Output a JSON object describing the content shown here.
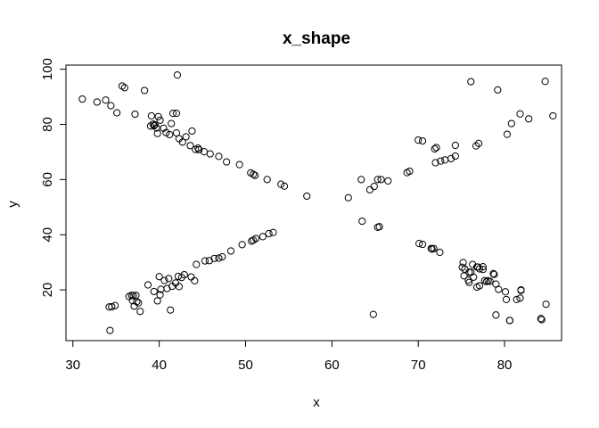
{
  "chart_data": {
    "type": "scatter",
    "title": "x_shape",
    "xlabel": "x",
    "ylabel": "y",
    "xlim": [
      29.2,
      86.6
    ],
    "ylim": [
      1.6,
      101.5
    ],
    "xticks": [
      30,
      40,
      50,
      60,
      70,
      80
    ],
    "yticks": [
      20,
      40,
      60,
      80,
      100
    ],
    "grid": false,
    "box": true,
    "x": [
      31.1,
      32.8,
      33.8,
      34.4,
      35.1,
      35.7,
      36.0,
      37.2,
      38.3,
      39.1,
      39.5,
      39.0,
      39.4,
      39.7,
      39.3,
      39.8,
      40.1,
      39.9,
      40.5,
      40.8,
      41.2,
      41.4,
      41.6,
      42.0,
      42.3,
      42.1,
      42.7,
      43.1,
      43.6,
      43.8,
      44.2,
      44.6,
      44.5,
      45.2,
      45.9,
      46.9,
      47.8,
      49.3,
      50.6,
      50.9,
      51.1,
      52.5,
      54.1,
      54.5,
      57.1,
      61.9,
      63.5,
      64.4,
      64.9,
      65.3,
      65.5,
      66.5,
      68.7,
      69.0,
      70.1,
      70.5,
      71.5,
      71.8,
      72.0,
      72.5,
      73.1,
      73.8,
      74.3,
      74.3,
      75.2,
      75.3,
      75.8,
      76.1,
      76.3,
      76.1,
      76.7,
      76.8,
      76.9,
      77.0,
      77.1,
      77.5,
      77.7,
      78.1,
      78.7,
      79.0,
      79.2,
      80.1,
      80.3,
      80.6,
      80.8,
      81.4,
      81.8,
      81.9,
      82.8,
      84.2,
      84.8,
      85.6,
      34.2,
      34.3,
      34.5,
      34.9,
      36.5,
      36.8,
      36.9,
      37.0,
      37.1,
      37.3,
      37.4,
      37.6,
      37.8,
      38.7,
      39.4,
      39.8,
      40.0,
      40.1,
      40.2,
      40.6,
      40.9,
      41.1,
      41.3,
      41.5,
      41.9,
      42.2,
      42.3,
      42.6,
      42.9,
      43.7,
      44.1,
      44.3,
      45.3,
      45.8,
      46.4,
      46.9,
      47.3,
      48.3,
      49.6,
      50.7,
      50.9,
      51.2,
      52.0,
      52.7,
      53.2,
      63.4,
      64.8,
      65.3,
      65.7,
      70.0,
      70.5,
      71.6,
      71.9,
      72.1,
      72.6,
      75.1,
      75.4,
      75.9,
      75.9,
      76.4,
      76.8,
      77.1,
      77.5,
      77.9,
      78.3,
      78.8,
      79.0,
      79.3,
      80.2,
      80.6,
      81.8,
      81.9,
      84.3,
      84.7,
      42.0
    ],
    "y": [
      89.2,
      88.1,
      88.8,
      86.8,
      84.2,
      93.9,
      93.3,
      83.7,
      92.3,
      83.1,
      79.8,
      79.4,
      79.5,
      78.7,
      80.1,
      76.7,
      81.5,
      82.8,
      78.6,
      77.0,
      76.3,
      80.3,
      84.0,
      76.9,
      74.8,
      97.9,
      73.6,
      75.5,
      72.3,
      77.6,
      70.9,
      70.8,
      71.4,
      70.1,
      69.3,
      68.4,
      66.4,
      65.4,
      62.4,
      61.9,
      61.5,
      60.0,
      58.3,
      57.6,
      54.0,
      53.4,
      44.9,
      56.3,
      57.5,
      42.7,
      42.9,
      59.5,
      62.5,
      63.0,
      36.8,
      36.5,
      35.0,
      35.0,
      66.1,
      33.6,
      67.1,
      67.6,
      68.5,
      72.4,
      29.9,
      25.1,
      23.5,
      95.5,
      29.2,
      26.4,
      72.2,
      28.3,
      28.3,
      73.1,
      21.5,
      28.4,
      23.4,
      23.3,
      25.9,
      22.1,
      92.5,
      19.3,
      76.4,
      8.9,
      80.3,
      16.5,
      83.8,
      19.8,
      82.0,
      9.6,
      14.8,
      83.1,
      13.8,
      5.3,
      13.9,
      14.3,
      17.6,
      18.0,
      16.1,
      17.9,
      14.1,
      18.0,
      15.7,
      15.3,
      12.2,
      21.8,
      19.4,
      16.0,
      24.8,
      18.2,
      20.2,
      23.4,
      20.5,
      24.1,
      12.7,
      21.3,
      22.5,
      24.9,
      21.2,
      24.5,
      25.5,
      24.7,
      23.3,
      29.2,
      30.5,
      30.6,
      31.4,
      31.5,
      32.0,
      34.1,
      36.4,
      37.7,
      38.0,
      38.6,
      39.3,
      40.4,
      40.8,
      60.0,
      11.1,
      60.0,
      60.0,
      74.3,
      74.0,
      34.8,
      71.1,
      71.6,
      66.7,
      28.2,
      27.5,
      26.4,
      22.7,
      24.6,
      21.0,
      27.6,
      27.4,
      23.0,
      23.1,
      25.6,
      10.9,
      20.2,
      16.5,
      8.9,
      17.0,
      20.0,
      9.2,
      95.6,
      84.0
    ]
  }
}
